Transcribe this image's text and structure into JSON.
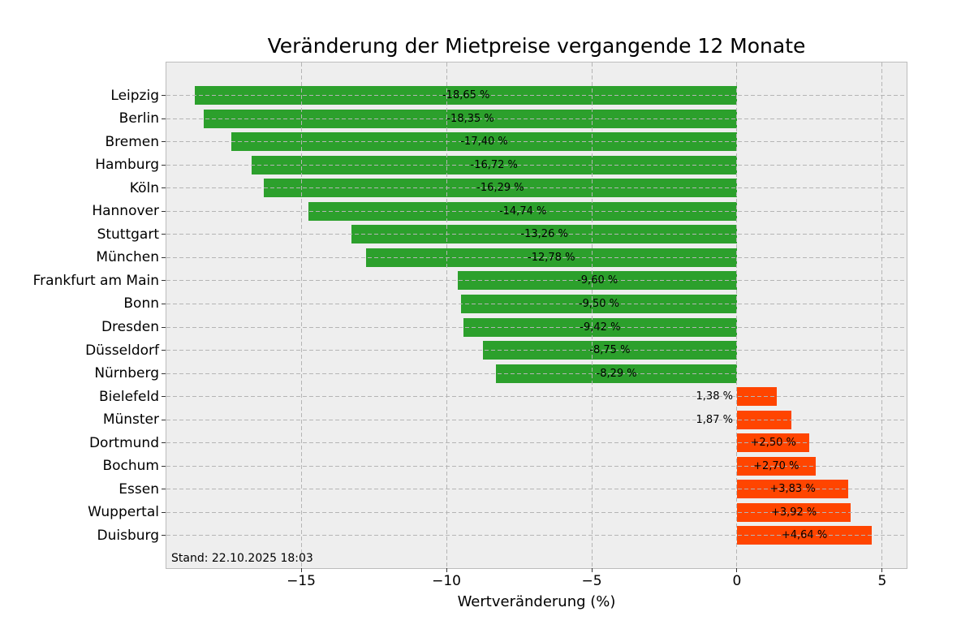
{
  "chart_data": {
    "type": "bar",
    "orientation": "horizontal",
    "title": "Veränderung der Mietpreise vergangende 12 Monate",
    "xlabel": "Wertveränderung (%)",
    "annotation": "Stand: 22.10.2025 18:03",
    "categories": [
      "Leipzig",
      "Berlin",
      "Bremen",
      "Hamburg",
      "Köln",
      "Hannover",
      "Stuttgart",
      "München",
      "Frankfurt am Main",
      "Bonn",
      "Dresden",
      "Düsseldorf",
      "Nürnberg",
      "Bielefeld",
      "Münster",
      "Dortmund",
      "Bochum",
      "Essen",
      "Wuppertal",
      "Duisburg"
    ],
    "values": [
      -18.65,
      -18.35,
      -17.4,
      -16.72,
      -16.29,
      -14.74,
      -13.26,
      -12.78,
      -9.6,
      -9.5,
      -9.42,
      -8.75,
      -8.29,
      1.38,
      1.87,
      2.5,
      2.7,
      3.83,
      3.92,
      4.64
    ],
    "bar_labels": [
      "-18,65 %",
      "-18,35 %",
      "-17,40 %",
      "-16,72 %",
      "-16,29 %",
      "-14,74 %",
      "-13,26 %",
      "-12,78 %",
      "-9,60 %",
      "-9,50 %",
      "-9,42 %",
      "-8,75 %",
      "-8,29 %",
      "1,38 %",
      "1,87 %",
      "+2,50 %",
      "+2,70 %",
      "+3,83 %",
      "+3,92 %",
      "+4,64 %"
    ],
    "label_placement": [
      "inside",
      "inside",
      "inside",
      "inside",
      "inside",
      "inside",
      "inside",
      "inside",
      "inside",
      "inside",
      "inside",
      "inside",
      "inside",
      "outside-left",
      "outside-left",
      "inside",
      "inside",
      "inside",
      "inside",
      "inside"
    ],
    "x_tick_values": [
      -15,
      -10,
      -5,
      0,
      5
    ],
    "x_tick_labels": [
      "−15",
      "−10",
      "−5",
      "0",
      "5"
    ],
    "xlim": [
      -19.64,
      5.84
    ],
    "grid": {
      "style": "dashed",
      "axis": "both",
      "above_bars": true
    },
    "legend": "none",
    "colors": {
      "negative_bar": "#2ca02c",
      "positive_bar": "#ff4500",
      "plot_background": "#eeeeee",
      "figure_background": "#ffffff",
      "grid": "#b5b5b5",
      "spine": "#bcbcbc",
      "text": "#000000"
    }
  }
}
